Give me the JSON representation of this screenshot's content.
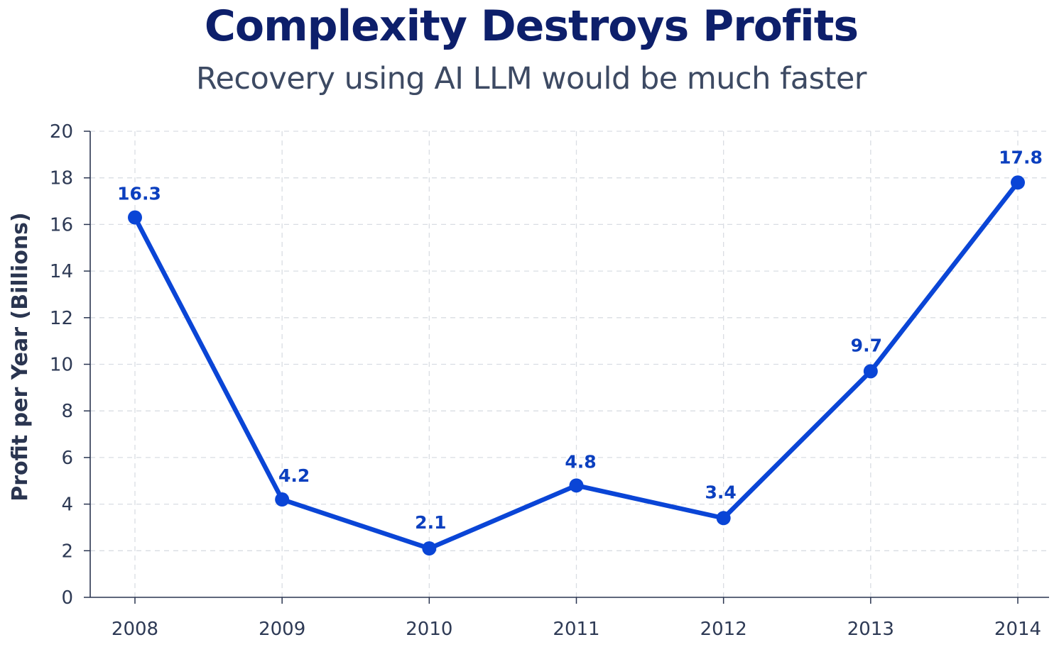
{
  "colors": {
    "title": "#0d1f6b",
    "subtitle": "#3d4a63",
    "axis": "#2a3550",
    "tick_text": "#2e3a55",
    "grid": "#d9dde3",
    "line": "#0a45d6",
    "data_label": "#0b3fbf"
  },
  "chart_data": {
    "type": "line",
    "title": "Complexity Destroys Profits",
    "subtitle": "Recovery using AI LLM would be much faster",
    "xlabel": "",
    "ylabel": "Profit per Year (Billions)",
    "x": [
      "2008",
      "2009",
      "2010",
      "2011",
      "2012",
      "2013",
      "2014"
    ],
    "series": [
      {
        "values": [
          16.3,
          4.2,
          2.1,
          4.8,
          3.4,
          9.7,
          17.8
        ]
      }
    ],
    "data_labels": [
      "16.3",
      "4.2",
      "2.1",
      "4.8",
      "3.4",
      "9.7",
      "17.8"
    ],
    "ylim": [
      0,
      20
    ],
    "yticks": [
      "0",
      "2",
      "4",
      "6",
      "8",
      "10",
      "12",
      "14",
      "16",
      "18",
      "20"
    ],
    "grid": true,
    "legend": "none"
  }
}
